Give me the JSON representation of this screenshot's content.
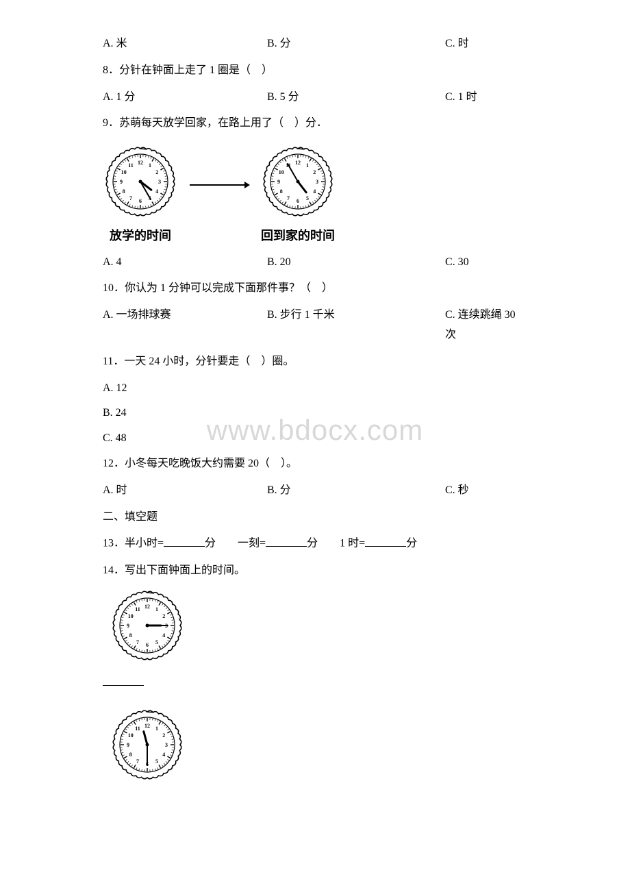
{
  "watermark": "www.bdocx.com",
  "q7": {
    "options": {
      "a": "A. 米",
      "b": "B. 分",
      "c": "C. 时"
    }
  },
  "q8": {
    "stem": "8．分针在钟面上走了 1 圈是（　）",
    "options": {
      "a": "A. 1 分",
      "b": "B. 5 分",
      "c": "C. 1 时"
    }
  },
  "q9": {
    "stem": "9．苏萌每天放学回家，在路上用了（　）分．",
    "clock1": {
      "hour_angle": 127.5,
      "minute_angle": 150,
      "label": "放学的时间"
    },
    "clock2": {
      "hour_angle": 142.5,
      "minute_angle": 330,
      "label": "回到家的时间"
    },
    "options": {
      "a": "A. 4",
      "b": "B. 20",
      "c": "C. 30"
    }
  },
  "q10": {
    "stem": "10．你认为 1 分钟可以完成下面那件事？（　）",
    "options": {
      "a": "A. 一场排球赛",
      "b": "B. 步行 1 千米",
      "c": "C. 连续跳绳 30 次"
    }
  },
  "q11": {
    "stem": "11．一天 24 小时，分针要走（　）圈。",
    "options": {
      "a": "A. 12",
      "b": "B. 24",
      "c": "C. 48"
    }
  },
  "q12": {
    "stem": "12．小冬每天吃晚饭大约需要 20（　）。",
    "options": {
      "a": "A. 时",
      "b": "B. 分",
      "c": "C. 秒"
    }
  },
  "section2": "二、填空题",
  "q13": {
    "part1_pre": "13．半小时=",
    "part1_post": "分　　一刻=",
    "part2_post": "分　　1 时=",
    "part3_post": "分"
  },
  "q14": {
    "stem": "14．写出下面钟面上的时间。",
    "clock1": {
      "hour_angle": 90,
      "minute_angle": 90
    },
    "clock2": {
      "hour_angle": 345,
      "minute_angle": 180
    }
  },
  "clock_style": {
    "outer_radius": 48,
    "inner_radius": 40,
    "scallop_r": 4,
    "num_font_size": 8,
    "hour_hand_len": 20,
    "minute_hand_len": 30,
    "hand_stroke": "#000",
    "face_fill": "#fff",
    "outline_stroke": "#000"
  }
}
